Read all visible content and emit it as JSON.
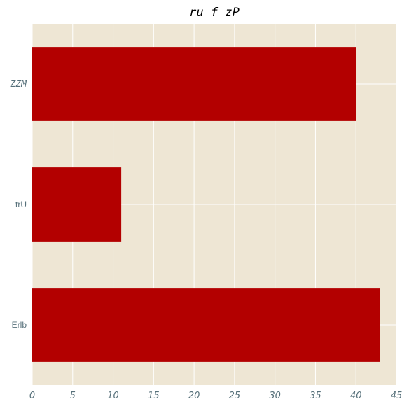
{
  "chart_data": {
    "type": "bar",
    "orientation": "horizontal",
    "title": "ru f zP",
    "xlabel": "",
    "ylabel": "",
    "categories": [
      "ZZM",
      "trU",
      "Erlb"
    ],
    "values": [
      40,
      11,
      43
    ],
    "xlim": [
      0,
      45
    ],
    "xticks": [
      "0",
      "5",
      "10",
      "15",
      "20",
      "25",
      "30",
      "35",
      "40",
      "45"
    ],
    "grid": true,
    "legend": "none",
    "colors": {
      "bar": "#b30000",
      "plot_background": "#eee6d4",
      "grid": "#ffffff",
      "tick_text": "#56707a"
    }
  }
}
